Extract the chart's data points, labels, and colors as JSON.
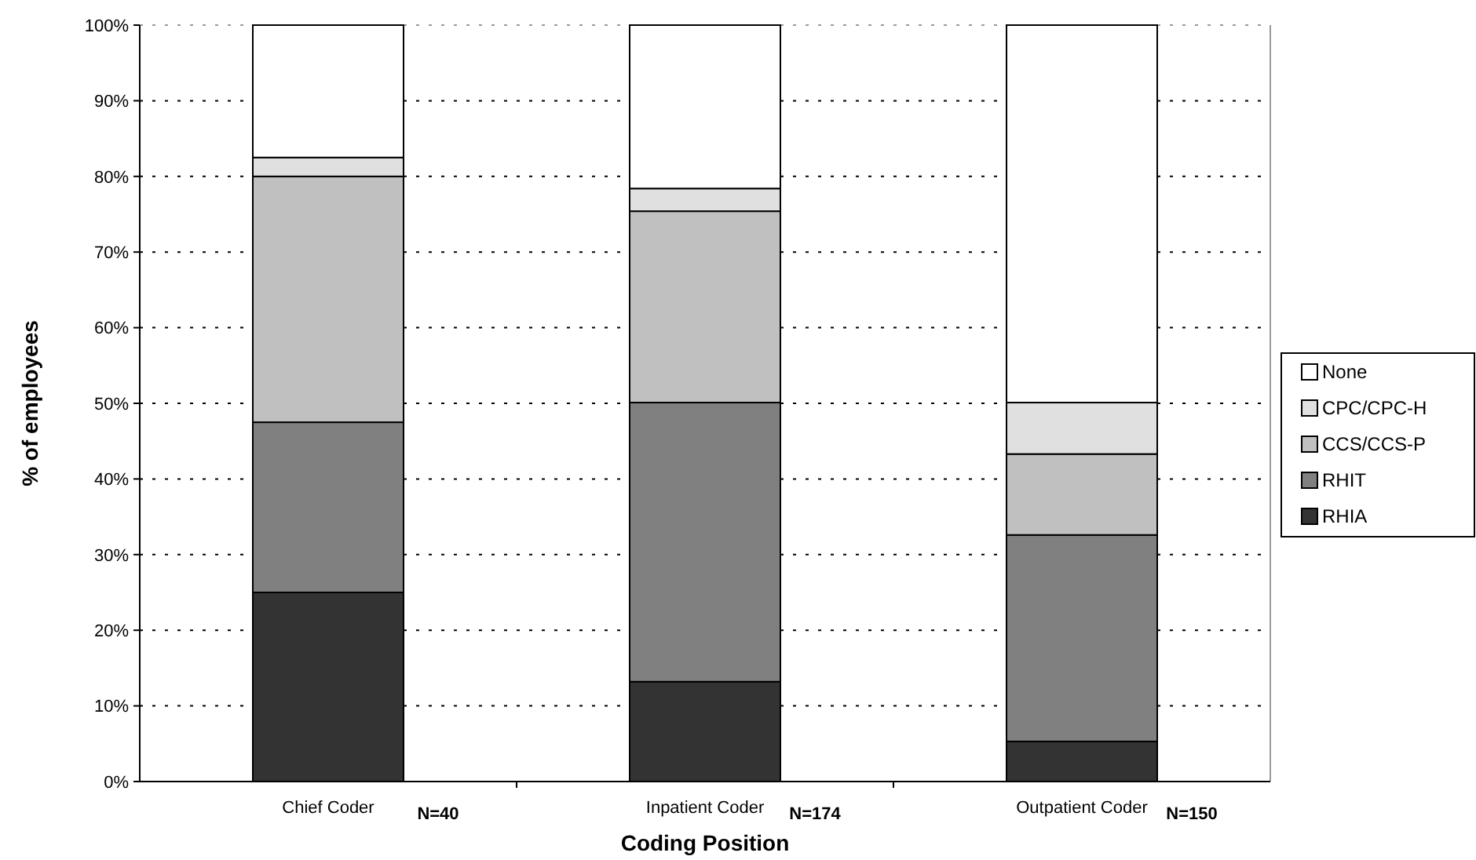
{
  "chart_data": {
    "type": "bar",
    "stacked": true,
    "xlabel": "Coding Position",
    "ylabel": "% of employees",
    "categories": [
      "Chief Coder",
      "Inpatient Coder",
      "Outpatient Coder"
    ],
    "series": [
      {
        "name": "RHIA",
        "color": "#333333",
        "values": [
          25,
          13.2,
          5.3
        ]
      },
      {
        "name": "RHIT",
        "color": "#808080",
        "values": [
          22.5,
          36.9,
          27.3
        ]
      },
      {
        "name": "CCS/CCS-P",
        "color": "#c0c0c0",
        "values": [
          32.5,
          25.3,
          10.7
        ]
      },
      {
        "name": "CPC/CPC-H",
        "color": "#e0e0e0",
        "values": [
          2.5,
          3.0,
          6.8
        ]
      },
      {
        "name": "None",
        "color": "#ffffff",
        "values": [
          17.5,
          21.6,
          49.9
        ]
      }
    ],
    "ylim": [
      0,
      100
    ],
    "yticks": [
      {
        "value": 0,
        "label": "0%"
      },
      {
        "value": 10,
        "label": "10%"
      },
      {
        "value": 20,
        "label": "20%"
      },
      {
        "value": 30,
        "label": "30%"
      },
      {
        "value": 40,
        "label": "40%"
      },
      {
        "value": 50,
        "label": "50%"
      },
      {
        "value": 60,
        "label": "60%"
      },
      {
        "value": 70,
        "label": "70%"
      },
      {
        "value": 80,
        "label": "80%"
      },
      {
        "value": 90,
        "label": "90%"
      },
      {
        "value": 100,
        "label": "100%"
      }
    ],
    "grid": "y",
    "legend": "right",
    "annotations": [
      "N=40",
      "N=174",
      "N=150"
    ]
  }
}
